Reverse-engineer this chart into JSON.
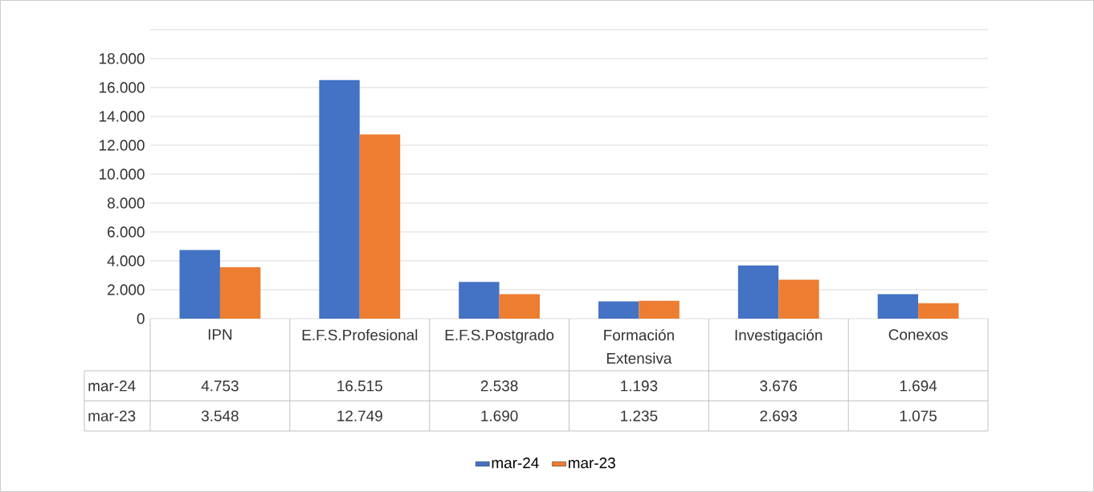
{
  "chart_data": {
    "type": "bar",
    "categories": [
      "IPN",
      "E.F.S.Profesional",
      "E.F.S.Postgrado",
      "Formación Extensiva",
      "Investigación",
      "Conexos"
    ],
    "series": [
      {
        "name": "mar-24",
        "color": "#4472c4",
        "values": [
          4753,
          16515,
          2538,
          1193,
          3676,
          1694
        ],
        "value_labels": [
          "4.753",
          "16.515",
          "2.538",
          "1.193",
          "3.676",
          "1.694"
        ]
      },
      {
        "name": "mar-23",
        "color": "#ed7d31",
        "values": [
          3548,
          12749,
          1690,
          1235,
          2693,
          1075
        ],
        "value_labels": [
          "3.548",
          "12.749",
          "1.690",
          "1.235",
          "2.693",
          "1.075"
        ]
      }
    ],
    "ylim": [
      0,
      20000
    ],
    "yticks": [
      {
        "value": 0,
        "label": "0"
      },
      {
        "value": 2000,
        "label": "2.000"
      },
      {
        "value": 4000,
        "label": "4.000"
      },
      {
        "value": 6000,
        "label": "6.000"
      },
      {
        "value": 8000,
        "label": "8.000"
      },
      {
        "value": 10000,
        "label": "10.000"
      },
      {
        "value": 12000,
        "label": "12.000"
      },
      {
        "value": 14000,
        "label": "14.000"
      },
      {
        "value": 16000,
        "label": "16.000"
      },
      {
        "value": 18000,
        "label": "18.000"
      },
      {
        "value": 20000,
        "label": null
      }
    ],
    "grid": "y",
    "legend": "bottom"
  }
}
